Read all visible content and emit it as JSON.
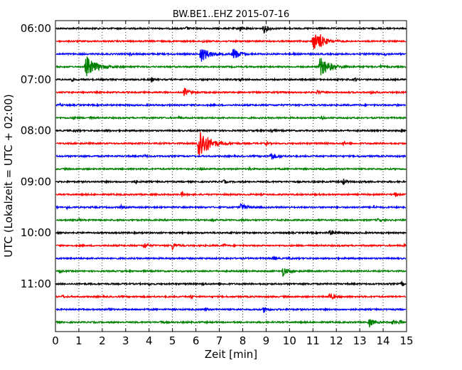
{
  "chart_data": {
    "type": "line",
    "title": "BW.BE1..EHZ 2015-07-16",
    "xlabel": "Zeit  [min]",
    "ylabel": "UTC (Lokalzeit = UTC + 02:00)",
    "xlim": [
      0,
      15
    ],
    "x_ticks": [
      "0",
      "1",
      "2",
      "3",
      "4",
      "5",
      "6",
      "7",
      "8",
      "9",
      "10",
      "11",
      "12",
      "13",
      "14",
      "15"
    ],
    "y_tick_labels": [
      "06:00",
      "07:00",
      "08:00",
      "09:00",
      "10:00",
      "11:00"
    ],
    "grid": "vertical dotted",
    "row_interval_minutes": 15,
    "row_colors": [
      "#000000",
      "#ff0000",
      "#0000ff",
      "#008000"
    ],
    "rows": [
      {
        "start": "06:00",
        "color": "#000000",
        "events": [
          [
            5.6,
            0.4,
            0.15
          ],
          [
            7.9,
            0.8,
            0.15
          ],
          [
            8.9,
            1.1,
            0.25
          ]
        ]
      },
      {
        "start": "06:15",
        "color": "#ff0000",
        "events": [
          [
            6.3,
            0.3,
            0.1
          ],
          [
            11.0,
            2.2,
            0.5
          ],
          [
            11.3,
            0.9,
            0.3
          ]
        ]
      },
      {
        "start": "06:30",
        "color": "#0000ff",
        "events": [
          [
            3.2,
            0.3,
            0.1
          ],
          [
            6.2,
            2.0,
            0.5
          ],
          [
            7.6,
            1.6,
            0.35
          ],
          [
            10.2,
            0.3,
            0.1
          ],
          [
            14.1,
            0.3,
            0.1
          ]
        ]
      },
      {
        "start": "06:45",
        "color": "#008000",
        "events": [
          [
            1.3,
            2.6,
            0.6
          ],
          [
            11.3,
            2.4,
            0.6
          ],
          [
            13.9,
            0.4,
            0.15
          ]
        ]
      },
      {
        "start": "07:00",
        "color": "#000000",
        "events": [
          [
            0.7,
            0.5,
            0.1
          ],
          [
            4.1,
            0.6,
            0.1
          ],
          [
            7.9,
            0.4,
            0.1
          ],
          [
            12.8,
            0.5,
            0.1
          ]
        ]
      },
      {
        "start": "07:15",
        "color": "#ff0000",
        "events": [
          [
            5.5,
            1.0,
            0.3
          ],
          [
            11.2,
            0.6,
            0.15
          ],
          [
            13.5,
            0.4,
            0.2
          ]
        ]
      },
      {
        "start": "07:30",
        "color": "#0000ff",
        "events": [
          [
            0.2,
            0.3,
            0.1
          ],
          [
            14.6,
            0.3,
            0.1
          ]
        ]
      },
      {
        "start": "07:45",
        "color": "#008000",
        "events": [
          [
            0.8,
            0.4,
            0.1
          ],
          [
            1.5,
            0.4,
            0.1
          ],
          [
            5.3,
            0.3,
            0.1
          ],
          [
            11.4,
            0.4,
            0.1
          ]
        ]
      },
      {
        "start": "08:00",
        "color": "#000000",
        "events": [
          [
            0.8,
            0.3,
            0.1
          ],
          [
            2.2,
            0.3,
            0.1
          ],
          [
            9.2,
            0.6,
            0.1
          ],
          [
            14.8,
            0.4,
            0.1
          ]
        ]
      },
      {
        "start": "08:15",
        "color": "#ff0000",
        "events": [
          [
            6.1,
            4.6,
            0.6
          ],
          [
            9.0,
            0.4,
            0.15
          ],
          [
            12.3,
            0.4,
            0.1
          ]
        ]
      },
      {
        "start": "08:30",
        "color": "#0000ff",
        "events": [
          [
            3.8,
            0.4,
            0.1
          ],
          [
            9.2,
            1.0,
            0.3
          ]
        ]
      },
      {
        "start": "08:45",
        "color": "#008000",
        "events": [
          [
            6.2,
            0.3,
            0.1
          ],
          [
            8.3,
            0.4,
            0.1
          ]
        ]
      },
      {
        "start": "09:00",
        "color": "#000000",
        "events": [
          [
            3.4,
            0.5,
            0.1
          ],
          [
            7.2,
            0.5,
            0.1
          ],
          [
            12.3,
            0.7,
            0.2
          ],
          [
            13.0,
            0.4,
            0.2
          ]
        ]
      },
      {
        "start": "09:15",
        "color": "#ff0000",
        "events": [
          [
            5.4,
            0.6,
            0.1
          ],
          [
            14.5,
            0.5,
            0.1
          ]
        ]
      },
      {
        "start": "09:30",
        "color": "#0000ff",
        "events": [
          [
            0.5,
            0.3,
            0.1
          ],
          [
            2.8,
            0.4,
            0.1
          ],
          [
            7.9,
            1.0,
            0.3
          ],
          [
            13.6,
            0.4,
            0.1
          ]
        ]
      },
      {
        "start": "09:45",
        "color": "#008000",
        "events": [
          [
            1.0,
            0.3,
            0.1
          ],
          [
            6.7,
            0.4,
            0.1
          ],
          [
            8.0,
            0.4,
            0.1
          ],
          [
            13.8,
            0.6,
            0.15
          ]
        ]
      },
      {
        "start": "10:00",
        "color": "#000000",
        "events": [
          [
            7.5,
            0.4,
            0.1
          ],
          [
            11.7,
            0.6,
            0.3
          ]
        ]
      },
      {
        "start": "10:15",
        "color": "#ff0000",
        "events": [
          [
            3.8,
            0.8,
            0.2
          ],
          [
            5.0,
            1.0,
            0.2
          ],
          [
            7.2,
            0.4,
            0.1
          ],
          [
            14.9,
            0.4,
            0.1
          ]
        ]
      },
      {
        "start": "10:30",
        "color": "#0000ff",
        "events": [
          [
            9.3,
            0.6,
            0.15
          ],
          [
            10.0,
            0.3,
            0.1
          ]
        ]
      },
      {
        "start": "10:45",
        "color": "#008000",
        "events": [
          [
            0.2,
            0.3,
            0.1
          ],
          [
            9.7,
            1.2,
            0.3
          ]
        ]
      },
      {
        "start": "11:00",
        "color": "#000000",
        "events": [
          [
            4.0,
            0.3,
            0.1
          ],
          [
            6.3,
            0.4,
            0.1
          ],
          [
            14.8,
            0.6,
            0.1
          ]
        ]
      },
      {
        "start": "11:15",
        "color": "#ff0000",
        "events": [
          [
            0.3,
            0.3,
            0.1
          ],
          [
            5.8,
            0.4,
            0.1
          ],
          [
            11.7,
            0.8,
            0.3
          ]
        ]
      },
      {
        "start": "11:30",
        "color": "#0000ff",
        "events": [
          [
            2.3,
            0.4,
            0.1
          ],
          [
            6.4,
            0.5,
            0.1
          ],
          [
            8.9,
            0.7,
            0.25
          ]
        ]
      },
      {
        "start": "11:45",
        "color": "#008000",
        "events": [
          [
            4.5,
            0.4,
            0.1
          ],
          [
            13.4,
            1.2,
            0.25
          ],
          [
            14.4,
            0.6,
            0.15
          ],
          [
            14.7,
            0.5,
            0.15
          ]
        ]
      }
    ]
  }
}
